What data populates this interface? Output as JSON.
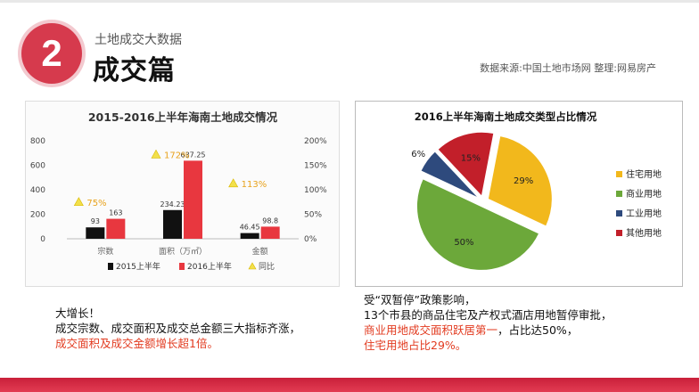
{
  "header": {
    "section_number": "2",
    "kicker": "土地成交大数据",
    "title": "成交篇",
    "source": "数据来源:中国土地市场网 整理:网易房产"
  },
  "chart_data": [
    {
      "type": "bar",
      "title": "2015-2016上半年海南土地成交情况",
      "categories": [
        "宗数",
        "面积（万㎡）",
        "金额"
      ],
      "series": [
        {
          "name": "2015上半年",
          "values": [
            93,
            234.23,
            46.45
          ],
          "color": "#111111"
        },
        {
          "name": "2016上半年",
          "values": [
            163,
            637.25,
            98.8
          ],
          "color": "#e8373f"
        }
      ],
      "growth": {
        "name": "同比",
        "labels": [
          "75%",
          "172%",
          "113%"
        ],
        "values": [
          75,
          172,
          113
        ]
      },
      "ylim": [
        0,
        800
      ],
      "yticks": [
        "800",
        "600",
        "400",
        "200",
        "0"
      ],
      "y2lim": [
        0,
        200
      ],
      "y2ticks": [
        "200%",
        "150%",
        "100%",
        "50%",
        "0%"
      ],
      "legend_position": "bottom"
    },
    {
      "type": "pie",
      "title": "2016上半年海南土地成交类型占比情况",
      "slices": [
        {
          "label": "住宅用地",
          "value": 29,
          "text": "29%",
          "color": "#f2b81c"
        },
        {
          "label": "商业用地",
          "value": 50,
          "text": "50%",
          "color": "#6ca83a"
        },
        {
          "label": "工业用地",
          "value": 6,
          "text": "6%",
          "color": "#2e4a7d"
        },
        {
          "label": "其他用地",
          "value": 15,
          "text": "15%",
          "color": "#c21f2a"
        }
      ],
      "legend_position": "right"
    }
  ],
  "notes": {
    "left": {
      "line1": "大增长！",
      "line2": "成交宗数、成交面积及成交总金额三大指标齐涨，",
      "line3": "成交面积及成交金额增长超1倍。"
    },
    "right": {
      "line1": "受“双暂停”政策影响，",
      "line2": "13个市县的商品住宅及产权式酒店用地暂停审批，",
      "line3a": "商业用地成交面积跃居第一",
      "line3b": "，占比达50%，",
      "line4": "住宅用地占比29%。"
    }
  }
}
